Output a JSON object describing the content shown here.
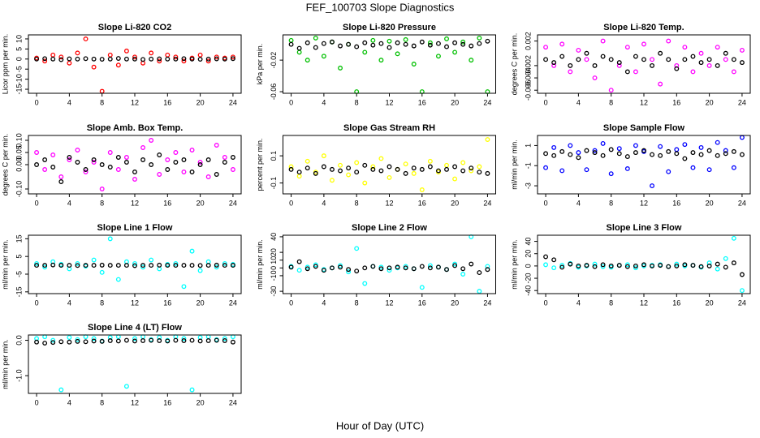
{
  "title": "FEF_100703  Slope Diagnostics",
  "xlabel": "Hour of Day (UTC)",
  "chart_data": [
    {
      "type": "scatter",
      "title": "Slope Li-820 CO2",
      "ylabel": "Licor ppm per min.",
      "x": [
        0,
        1,
        2,
        3,
        4,
        5,
        6,
        7,
        8,
        9,
        10,
        11,
        12,
        13,
        14,
        15,
        16,
        17,
        18,
        19,
        20,
        21,
        22,
        23,
        24
      ],
      "xlim": [
        -1,
        25
      ],
      "xticks": [
        0,
        4,
        8,
        12,
        16,
        20,
        24
      ],
      "ylim": [
        -17,
        12
      ],
      "yticks": [
        -15,
        -10,
        -5,
        0,
        5,
        10
      ],
      "series": [
        {
          "color": "#ff0000",
          "values": [
            0.5,
            -1,
            2,
            1,
            -2,
            3,
            10,
            -4,
            -16,
            2,
            -3,
            4,
            1,
            -2,
            3,
            -1,
            2,
            1,
            -1,
            0.5,
            2,
            -1,
            1,
            0.5,
            1
          ]
        },
        {
          "color": "#000000",
          "values": [
            0,
            0.2,
            0,
            -0.3,
            0.1,
            0,
            0.2,
            0,
            -0.1,
            0,
            0.3,
            0,
            0,
            -0.2,
            0,
            0.1,
            0,
            0,
            0.2,
            0,
            -0.1,
            0,
            0.1,
            0,
            0.2
          ]
        }
      ]
    },
    {
      "type": "scatter",
      "title": "Slope Li-820 Pressure",
      "ylabel": "kPa per min.",
      "x": [
        0,
        1,
        2,
        3,
        4,
        5,
        6,
        7,
        8,
        9,
        10,
        11,
        12,
        13,
        14,
        15,
        16,
        17,
        18,
        19,
        20,
        21,
        22,
        23,
        24
      ],
      "xlim": [
        -1,
        25
      ],
      "xticks": [
        0,
        4,
        8,
        12,
        16,
        20,
        24
      ],
      "ylim": [
        -0.062,
        0.012
      ],
      "yticks": [
        -0.06,
        -0.02
      ],
      "series": [
        {
          "color": "#00c000",
          "values": [
            0.005,
            -0.01,
            -0.02,
            0.008,
            -0.015,
            0.003,
            -0.03,
            0,
            -0.06,
            -0.01,
            0.005,
            -0.02,
            0.004,
            -0.012,
            0.006,
            -0.025,
            -0.06,
            0.002,
            -0.015,
            0.007,
            -0.01,
            0.003,
            -0.02,
            0.008,
            -0.06
          ]
        },
        {
          "color": "#000000",
          "values": [
            0,
            -0.005,
            0.002,
            -0.004,
            0.001,
            0.003,
            -0.002,
            0,
            -0.003,
            0.002,
            -0.001,
            0.001,
            -0.004,
            0.002,
            0,
            -0.002,
            0.003,
            -0.001,
            0.001,
            -0.003,
            0.002,
            0,
            -0.002,
            0.001,
            0.004
          ]
        }
      ]
    },
    {
      "type": "scatter",
      "title": "Slope Li-820 Temp.",
      "ylabel": "degrees C per min.",
      "x": [
        0,
        1,
        2,
        3,
        4,
        5,
        6,
        7,
        8,
        9,
        10,
        11,
        12,
        13,
        14,
        15,
        16,
        17,
        18,
        19,
        20,
        21,
        22,
        23,
        24
      ],
      "xlim": [
        -1,
        25
      ],
      "xticks": [
        0,
        4,
        8,
        12,
        16,
        20,
        24
      ],
      "ylim": [
        -0.0065,
        0.003
      ],
      "yticks": [
        -0.006,
        -0.004,
        -0.002,
        0.002
      ],
      "series": [
        {
          "color": "#ff00ff",
          "values": [
            0.001,
            -0.002,
            0.0015,
            -0.003,
            0.0005,
            -0.001,
            -0.004,
            0.002,
            -0.006,
            -0.002,
            0.001,
            -0.003,
            0.0015,
            -0.001,
            -0.005,
            0.002,
            -0.002,
            0.001,
            -0.003,
            0,
            -0.002,
            0.001,
            -0.001,
            -0.003,
            0.0005
          ]
        },
        {
          "color": "#000000",
          "values": [
            -0.001,
            -0.0015,
            -0.0005,
            -0.002,
            -0.001,
            0,
            -0.002,
            -0.0005,
            -0.001,
            -0.0015,
            -0.003,
            -0.0005,
            -0.001,
            -0.002,
            0,
            -0.001,
            -0.0025,
            -0.001,
            -0.0005,
            -0.0015,
            -0.001,
            -0.002,
            0,
            -0.001,
            -0.0015
          ]
        }
      ]
    },
    {
      "type": "scatter",
      "title": "Slope Amb. Box Temp.",
      "ylabel": "degrees C per min.",
      "x": [
        0,
        1,
        2,
        3,
        4,
        5,
        6,
        7,
        8,
        9,
        10,
        11,
        12,
        13,
        14,
        15,
        16,
        17,
        18,
        19,
        20,
        21,
        22,
        23,
        24
      ],
      "xlim": [
        -1,
        25
      ],
      "xticks": [
        0,
        4,
        8,
        12,
        16,
        20,
        24
      ],
      "ylim": [
        -0.12,
        0.12
      ],
      "yticks": [
        {
          "value": -0.1,
          "label": "-0.10"
        },
        {
          "value": 0,
          "label": "0.00"
        },
        0.05,
        {
          "value": 0.1,
          "label": "0.10"
        }
      ],
      "series": [
        {
          "color": "#ff00ff",
          "values": [
            0.05,
            -0.02,
            0.04,
            -0.05,
            0.02,
            0.06,
            -0.03,
            0.01,
            -0.1,
            0.05,
            -0.02,
            0.03,
            -0.06,
            0.07,
            0.1,
            -0.04,
            0.02,
            0.05,
            -0.03,
            0.06,
            0.01,
            -0.05,
            0.08,
            0.03,
            -0.02
          ]
        },
        {
          "color": "#000000",
          "values": [
            0,
            0.02,
            -0.01,
            -0.07,
            0.03,
            0.01,
            -0.02,
            0.02,
            0,
            -0.01,
            0.03,
            0.01,
            -0.03,
            0.02,
            0,
            0.04,
            -0.02,
            0.01,
            0.02,
            -0.03,
            0,
            0.02,
            -0.04,
            0.01,
            0.03
          ]
        }
      ]
    },
    {
      "type": "scatter",
      "title": "Slope Gas Stream RH",
      "ylabel": "percent per min.",
      "x": [
        0,
        1,
        2,
        3,
        4,
        5,
        6,
        7,
        8,
        9,
        10,
        11,
        12,
        13,
        14,
        15,
        16,
        17,
        18,
        19,
        20,
        21,
        22,
        23,
        24
      ],
      "xlim": [
        -1,
        25
      ],
      "xticks": [
        0,
        4,
        8,
        12,
        16,
        20,
        24
      ],
      "ylim": [
        -0.18,
        0.25
      ],
      "yticks": [
        -0.1,
        0.1
      ],
      "series": [
        {
          "color": "#ffff00",
          "values": [
            0.02,
            -0.05,
            0.06,
            -0.02,
            0.1,
            -0.08,
            0.03,
            -0.04,
            0.05,
            -0.1,
            0.02,
            0.08,
            -0.06,
            0,
            0.04,
            -0.03,
            -0.15,
            0.06,
            -0.02,
            0.03,
            -0.07,
            0.05,
            -0.01,
            0.02,
            0.22
          ]
        },
        {
          "color": "#000000",
          "values": [
            0,
            -0.02,
            0.01,
            -0.03,
            0.02,
            0,
            -0.01,
            0.01,
            -0.02,
            0.03,
            0,
            -0.01,
            0.02,
            0,
            -0.03,
            0.01,
            0,
            0.02,
            -0.01,
            0,
            0.02,
            -0.01,
            0.01,
            -0.02,
            -0.03
          ]
        }
      ]
    },
    {
      "type": "scatter",
      "title": "Slope Sample Flow",
      "ylabel": "ml/min per min.",
      "x": [
        0,
        1,
        2,
        3,
        4,
        5,
        6,
        7,
        8,
        9,
        10,
        11,
        12,
        13,
        14,
        15,
        16,
        17,
        18,
        19,
        20,
        21,
        22,
        23,
        24
      ],
      "xlim": [
        -1,
        25
      ],
      "xticks": [
        0,
        4,
        8,
        12,
        16,
        20,
        24
      ],
      "ylim": [
        -3.8,
        2
      ],
      "yticks": [
        -3,
        -1,
        1
      ],
      "series": [
        {
          "color": "#0000ff",
          "values": [
            -1.2,
            0.8,
            -1.5,
            1,
            0.3,
            -1.4,
            0.5,
            1.2,
            -1.8,
            0.7,
            -1.3,
            1,
            0.4,
            -3,
            0.9,
            -1.6,
            0.6,
            1.1,
            -1.2,
            0.8,
            -1.4,
            1.3,
            0.5,
            -1.2,
            1.8
          ]
        },
        {
          "color": "#000000",
          "values": [
            0.2,
            0,
            0.4,
            0.1,
            -0.2,
            0.5,
            0.3,
            0,
            0.6,
            0.2,
            -0.1,
            0.3,
            0.5,
            0.1,
            0,
            0.4,
            0.2,
            -0.3,
            0.3,
            0.1,
            0.5,
            0,
            0.2,
            0.4,
            0.1
          ]
        }
      ]
    },
    {
      "type": "scatter",
      "title": "Slope Line 1 Flow",
      "ylabel": "ml/min per min.",
      "x": [
        0,
        1,
        2,
        3,
        4,
        5,
        6,
        7,
        8,
        9,
        10,
        11,
        12,
        13,
        14,
        15,
        16,
        17,
        18,
        19,
        20,
        21,
        22,
        23,
        24
      ],
      "xlim": [
        -1,
        25
      ],
      "xticks": [
        0,
        4,
        8,
        12,
        16,
        20,
        24
      ],
      "ylim": [
        -16,
        17
      ],
      "yticks": [
        -15,
        -5,
        5,
        15
      ],
      "series": [
        {
          "color": "#00ffff",
          "values": [
            1,
            -1,
            2,
            0.5,
            -2,
            1,
            -0.5,
            3,
            -4,
            15,
            -8,
            2,
            1,
            -1,
            3,
            -2,
            0.5,
            1,
            -12,
            8,
            -3,
            2,
            -1,
            1,
            0.5
          ]
        },
        {
          "color": "#000000",
          "values": [
            0,
            0,
            0.2,
            0,
            0,
            -0.1,
            0,
            0,
            0.1,
            0,
            0,
            0,
            -0.2,
            0,
            0,
            0.1,
            0,
            0,
            0,
            0,
            -0.1,
            0,
            0.1,
            0,
            0
          ]
        }
      ]
    },
    {
      "type": "scatter",
      "title": "Slope Line 2 Flow",
      "ylabel": "ml/min per min.",
      "x": [
        0,
        1,
        2,
        3,
        4,
        5,
        6,
        7,
        8,
        9,
        10,
        11,
        12,
        13,
        14,
        15,
        16,
        17,
        18,
        19,
        20,
        21,
        22,
        23,
        24
      ],
      "xlim": [
        -1,
        25
      ],
      "xticks": [
        0,
        4,
        8,
        12,
        16,
        20,
        24
      ],
      "ylim": [
        -33,
        42
      ],
      "yticks": [
        -30,
        -10,
        0,
        10,
        20,
        40
      ],
      "series": [
        {
          "color": "#00ffff",
          "values": [
            2,
            -3,
            1,
            4,
            -2,
            0,
            3,
            -5,
            25,
            -20,
            2,
            1,
            -3,
            0,
            2,
            -1,
            -25,
            3,
            1,
            -2,
            5,
            -8,
            40,
            -30,
            2
          ]
        },
        {
          "color": "#000000",
          "values": [
            1,
            8,
            -1,
            2,
            -3,
            0,
            1,
            -2,
            -4,
            0,
            2,
            -1,
            0,
            1,
            0,
            -1,
            2,
            0,
            1,
            -2,
            3,
            -1,
            5,
            -6,
            -2
          ]
        }
      ]
    },
    {
      "type": "scatter",
      "title": "Slope Line 3 Flow",
      "ylabel": "ml/min per min.",
      "x": [
        0,
        1,
        2,
        3,
        4,
        5,
        6,
        7,
        8,
        9,
        10,
        11,
        12,
        13,
        14,
        15,
        16,
        17,
        18,
        19,
        20,
        21,
        22,
        23,
        24
      ],
      "xlim": [
        -1,
        25
      ],
      "xticks": [
        0,
        4,
        8,
        12,
        16,
        20,
        24
      ],
      "ylim": [
        -45,
        50
      ],
      "yticks": [
        -40,
        -20,
        0,
        20,
        40
      ],
      "series": [
        {
          "color": "#00ffff",
          "values": [
            2,
            -3,
            1,
            4,
            -2,
            0,
            3,
            -1,
            -2,
            1,
            2,
            -3,
            0,
            1,
            2,
            -1,
            3,
            0,
            1,
            -2,
            5,
            -5,
            12,
            45,
            -40
          ]
        },
        {
          "color": "#000000",
          "values": [
            15,
            10,
            -2,
            3,
            0,
            1,
            -1,
            2,
            0,
            1,
            -1,
            0,
            2,
            0,
            1,
            -1,
            0,
            2,
            1,
            -1,
            0,
            3,
            -2,
            5,
            -14
          ]
        }
      ]
    },
    {
      "type": "scatter",
      "title": "Slope Line 4 (LT) Flow",
      "ylabel": "ml/min per min.",
      "x": [
        0,
        1,
        2,
        3,
        4,
        5,
        6,
        7,
        8,
        9,
        10,
        11,
        12,
        13,
        14,
        15,
        16,
        17,
        18,
        19,
        20,
        21,
        22,
        23,
        24
      ],
      "xlim": [
        -1,
        25
      ],
      "xticks": [
        0,
        4,
        8,
        12,
        16,
        20,
        24
      ],
      "ylim": [
        -1.5,
        0.15
      ],
      "yticks": [
        {
          "value": -1,
          "label": "-1.0"
        },
        {
          "value": 0,
          "label": "0.0"
        }
      ],
      "series": [
        {
          "color": "#00ffff",
          "values": [
            0.05,
            0.1,
            0,
            -1.4,
            0.08,
            0.02,
            0.1,
            0.05,
            -0.02,
            0.08,
            0.1,
            -1.3,
            0.05,
            0.1,
            0.02,
            0.08,
            0,
            0.1,
            0.05,
            -1.4,
            0.08,
            0.1,
            0.02,
            0.05,
            0.1
          ]
        },
        {
          "color": "#000000",
          "values": [
            -0.05,
            -0.08,
            -0.06,
            -0.04,
            -0.05,
            -0.03,
            -0.04,
            -0.02,
            -0.03,
            -0.01,
            -0.02,
            0,
            -0.02,
            -0.01,
            0,
            -0.01,
            -0.02,
            0,
            -0.01,
            0,
            -0.02,
            -0.01,
            0,
            -0.01,
            -0.05
          ]
        }
      ]
    }
  ]
}
